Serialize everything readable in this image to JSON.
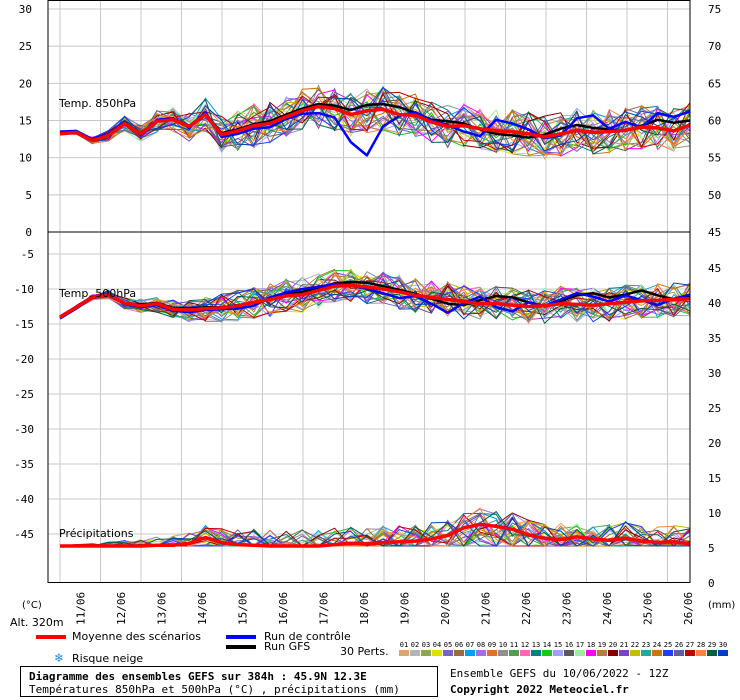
{
  "chart_data": [
    {
      "type": "line",
      "panel": "top",
      "label": "Temp. 850hPa",
      "ylim_left": [
        0,
        30
      ],
      "yticks_left": [
        "30",
        "25",
        "20",
        "15",
        "10",
        "5",
        "0"
      ],
      "ylim_right": [
        45,
        75
      ],
      "yticks_right": [
        "75",
        "70",
        "65",
        "60",
        "55",
        "50",
        "45"
      ],
      "series": [
        {
          "name": "Moyenne des scénarios",
          "color": "#ff0000",
          "values": [
            13.2,
            13.4,
            12.3,
            13.0,
            14.6,
            13.2,
            14.9,
            15.1,
            14.2,
            15.8,
            13.1,
            13.6,
            14.3,
            14.6,
            15.5,
            16.3,
            16.9,
            16.6,
            15.8,
            16.3,
            16.5,
            15.8,
            15.7,
            14.8,
            14.2,
            14.3,
            13.9,
            13.6,
            13.5,
            13.2,
            12.8,
            13.2,
            13.7,
            13.4,
            13.5,
            13.7,
            14.1,
            14.0,
            13.6,
            14.4
          ]
        },
        {
          "name": "Run de contrôle",
          "color": "#0000ff",
          "values": [
            13.5,
            13.6,
            12.5,
            13.2,
            14.8,
            13.0,
            15.1,
            15.3,
            14.0,
            16.1,
            12.8,
            13.2,
            13.9,
            14.1,
            15.2,
            15.9,
            16.0,
            15.4,
            12.1,
            10.3,
            14.2,
            15.6,
            16.1,
            15.0,
            14.4,
            13.5,
            12.9,
            15.1,
            14.6,
            13.8,
            12.6,
            13.0,
            15.3,
            15.7,
            13.9,
            14.8,
            14.1,
            16.0,
            15.5,
            16.2
          ]
        },
        {
          "name": "Run GFS",
          "color": "#000000",
          "values": [
            13.3,
            13.5,
            12.4,
            13.1,
            14.7,
            13.3,
            15.0,
            15.2,
            14.3,
            15.9,
            13.3,
            13.8,
            14.5,
            14.9,
            15.8,
            16.6,
            17.2,
            17.0,
            16.4,
            17.1,
            17.2,
            16.8,
            16.0,
            15.1,
            14.9,
            14.6,
            13.8,
            13.2,
            13.0,
            12.7,
            13.1,
            13.9,
            14.4,
            14.0,
            13.8,
            13.6,
            14.3,
            15.1,
            14.7,
            15.0
          ]
        }
      ]
    },
    {
      "type": "line",
      "panel": "bottom",
      "label": "Temp. 500hPa",
      "label2": "Précipitations",
      "ylim_left": [
        -50,
        0
      ],
      "yticks_left": [
        "-5",
        "-10",
        "-15",
        "-20",
        "-25",
        "-30",
        "-35",
        "-40",
        "-45"
      ],
      "ylim_right": [
        -5,
        45
      ],
      "yticks_right": [
        "45",
        "40",
        "35",
        "30",
        "25",
        "20",
        "15",
        "10",
        "5",
        "0"
      ],
      "series": [
        {
          "name": "Moyenne des scénarios",
          "color": "#ff0000",
          "values": [
            -14.0,
            -12.6,
            -11.2,
            -10.8,
            -12.0,
            -12.4,
            -12.1,
            -12.9,
            -13.0,
            -12.8,
            -12.7,
            -12.4,
            -11.9,
            -11.5,
            -11.0,
            -10.8,
            -10.2,
            -9.6,
            -9.5,
            -9.7,
            -10.0,
            -10.4,
            -10.9,
            -11.2,
            -11.5,
            -11.8,
            -12.1,
            -12.1,
            -12.3,
            -12.5,
            -12.4,
            -12.1,
            -12.2,
            -12.3,
            -12.1,
            -11.9,
            -11.7,
            -11.6,
            -11.5,
            -11.4
          ]
        },
        {
          "name": "Run de contrôle",
          "color": "#0000ff",
          "values": [
            -14.2,
            -12.8,
            -11.3,
            -10.9,
            -12.1,
            -12.6,
            -12.3,
            -13.1,
            -13.3,
            -13.0,
            -12.9,
            -12.8,
            -12.4,
            -11.2,
            -10.5,
            -10.0,
            -9.7,
            -9.3,
            -9.4,
            -10.0,
            -10.6,
            -11.3,
            -11.0,
            -12.1,
            -13.4,
            -12.0,
            -11.1,
            -12.6,
            -13.2,
            -11.9,
            -12.4,
            -11.5,
            -10.6,
            -11.1,
            -11.8,
            -10.9,
            -11.6,
            -12.3,
            -11.4,
            -10.8
          ]
        },
        {
          "name": "Run GFS",
          "color": "#000000",
          "values": [
            -14.0,
            -12.5,
            -11.1,
            -10.7,
            -12.0,
            -12.2,
            -12.0,
            -12.7,
            -12.8,
            -12.6,
            -12.6,
            -12.3,
            -12.0,
            -11.5,
            -10.8,
            -10.4,
            -9.8,
            -9.2,
            -9.0,
            -9.1,
            -9.6,
            -10.1,
            -10.7,
            -11.4,
            -12.1,
            -12.3,
            -11.6,
            -11.0,
            -11.2,
            -11.9,
            -12.5,
            -11.7,
            -10.9,
            -10.6,
            -11.2,
            -10.8,
            -10.2,
            -10.9,
            -11.5,
            -11.1
          ]
        },
        {
          "name": "Moyenne des scénarios (précipitations)",
          "color": "#ff0000",
          "unit": "mm",
          "values": [
            0,
            0,
            0,
            0,
            0,
            0,
            0.1,
            0.1,
            0.4,
            1.2,
            0.5,
            0.2,
            0.1,
            0,
            0,
            0,
            0,
            0.2,
            0.4,
            0.3,
            0.5,
            0.6,
            0.7,
            1.0,
            1.5,
            2.6,
            3.1,
            2.8,
            2.4,
            1.6,
            1.1,
            0.9,
            1.3,
            1.0,
            0.8,
            1.1,
            0.7,
            0.5,
            0.6,
            0.3
          ]
        }
      ]
    }
  ],
  "x_axis": {
    "ticks": [
      "11/06",
      "12/06",
      "13/06",
      "14/06",
      "15/06",
      "16/06",
      "17/06",
      "18/06",
      "19/06",
      "20/06",
      "21/06",
      "22/06",
      "23/06",
      "24/06",
      "25/06",
      "26/06"
    ],
    "left_unit": "(°C)",
    "right_unit": "(mm)",
    "altitude": "Alt. 320m"
  },
  "legend": {
    "mean": "Moyenne des scénarios",
    "control": "Run de contrôle",
    "gfs": "Run GFS",
    "snow": "Risque neige",
    "perts": "30 Perts.",
    "pert_numbers": [
      "01",
      "02",
      "03",
      "04",
      "05",
      "06",
      "07",
      "08",
      "09",
      "10",
      "11",
      "12",
      "13",
      "14",
      "15",
      "16",
      "17",
      "18",
      "19",
      "20",
      "21",
      "22",
      "23",
      "24",
      "25",
      "26",
      "27",
      "28",
      "29",
      "30"
    ],
    "pert_colors": [
      "#e2a36a",
      "#b5b5b5",
      "#8ca84a",
      "#e0e000",
      "#7a5fd0",
      "#9b6b3c",
      "#00a0e8",
      "#a06fe0",
      "#e07030",
      "#909090",
      "#4fa04f",
      "#ff69b4",
      "#008080",
      "#1ec31e",
      "#a0a0ff",
      "#5a5a5a",
      "#9cf09c",
      "#ff00ff",
      "#b08040",
      "#800000",
      "#8040c0",
      "#c0c000",
      "#30a0a0",
      "#cc7700",
      "#2040ff",
      "#6060a0",
      "#c00000",
      "#ff8040",
      "#006040",
      "#0040c0"
    ]
  },
  "footer": {
    "title": "Diagramme des ensembles GEFS sur 384h : 45.9N 12.3E",
    "subtitle": "Températures 850hPa et 500hPa (°C) , précipitations (mm)",
    "run": "Ensemble GEFS du 10/06/2022 - 12Z",
    "copyright": "Copyright 2022 Meteociel.fr"
  }
}
